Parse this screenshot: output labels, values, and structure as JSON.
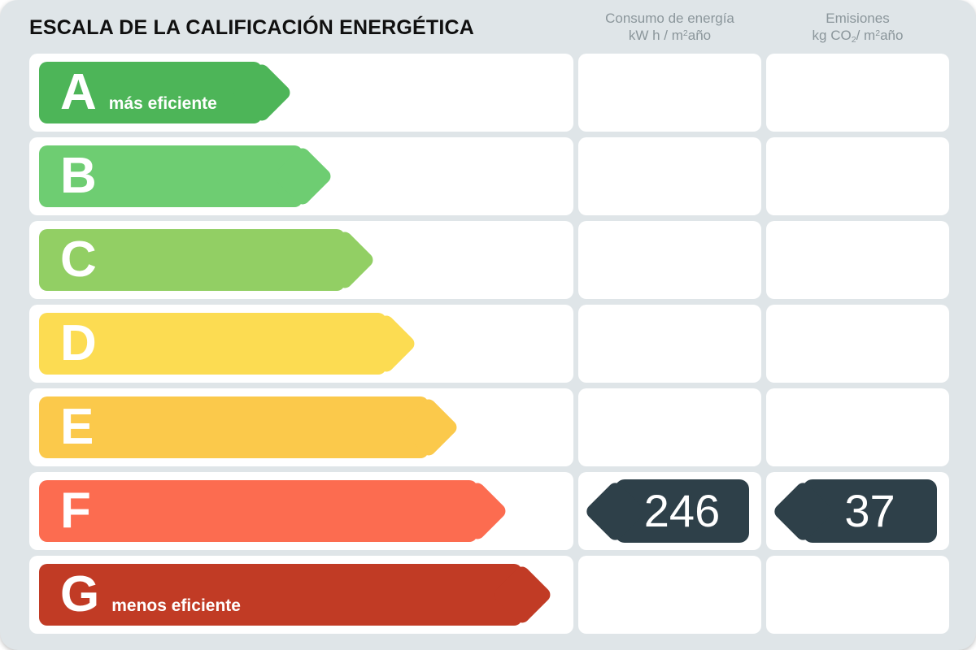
{
  "title": "ESCALA DE LA CALIFICACIÓN ENERGÉTICA",
  "page_background": "#dfe5e8",
  "columns": {
    "consumo": {
      "line1": "Consumo de energía",
      "line2_prefix": "kW h / m",
      "line2_sup": "2",
      "line2_suffix": "año"
    },
    "emisiones": {
      "line1": "Emisiones",
      "line2_prefix": "kg CO",
      "line2_sub": "2",
      "line2_mid": "/ m",
      "line2_sup": "2",
      "line2_suffix": "año"
    }
  },
  "bands": [
    {
      "letter": "A",
      "note": "más eficiente",
      "color": "#4db558"
    },
    {
      "letter": "B",
      "note": "",
      "color": "#6ecd72"
    },
    {
      "letter": "C",
      "note": "",
      "color": "#92cf64"
    },
    {
      "letter": "D",
      "note": "",
      "color": "#fcdc52"
    },
    {
      "letter": "E",
      "note": "",
      "color": "#fbc94b"
    },
    {
      "letter": "F",
      "note": "",
      "color": "#fc6c50"
    },
    {
      "letter": "G",
      "note": "menos eficiente",
      "color": "#c13b25"
    }
  ],
  "rating": {
    "letter": "F",
    "consumo_value": "246",
    "emisiones_value": "37",
    "badge_color": "#2e4049",
    "value_text_color": "#ffffff"
  },
  "chart_data": {
    "type": "bar",
    "title": "ESCALA DE LA CALIFICACIÓN ENERGÉTICA",
    "categories": [
      "A",
      "B",
      "C",
      "D",
      "E",
      "F",
      "G"
    ],
    "band_colors": [
      "#4db558",
      "#6ecd72",
      "#92cf64",
      "#fcdc52",
      "#fbc94b",
      "#fc6c50",
      "#c13b25"
    ],
    "annotations": [
      "A = más eficiente",
      "G = menos eficiente"
    ],
    "assigned_rating": "F",
    "series": [
      {
        "name": "Consumo de energía kW h / m2 año",
        "values": [
          null,
          null,
          null,
          null,
          null,
          246,
          null
        ]
      },
      {
        "name": "Emisiones kg CO2 / m2 año",
        "values": [
          null,
          null,
          null,
          null,
          null,
          37,
          null
        ]
      }
    ],
    "legend_position": "top",
    "grid": false
  }
}
